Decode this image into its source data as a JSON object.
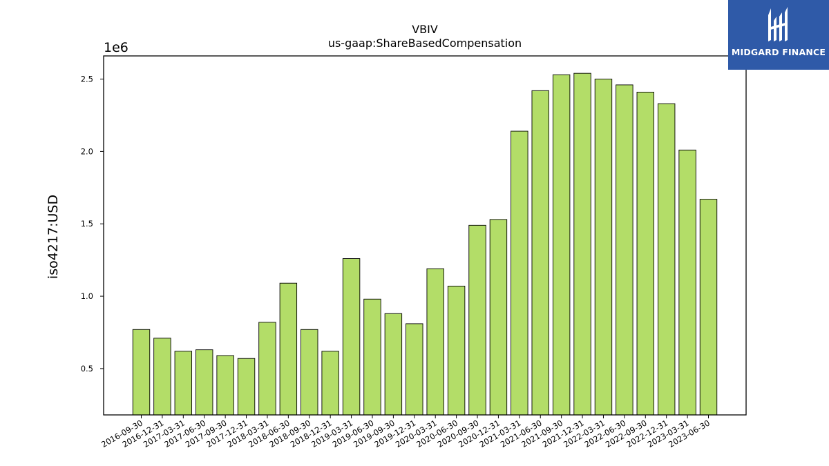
{
  "logo": {
    "text": "MIDGARD FINANCE",
    "icon": "midgard-logo-icon",
    "background": "#2f5aa8"
  },
  "chart_data": {
    "type": "bar",
    "title": "VBIV",
    "subtitle": "us-gaap:ShareBasedCompensation",
    "xlabel": "",
    "ylabel": "iso4217:USD",
    "offset_label": "1e6",
    "ylim": [
      0.18,
      2.66
    ],
    "yticks": [
      0.5,
      1.0,
      1.5,
      2.0,
      2.5
    ],
    "ytick_labels": [
      "0.5",
      "1.0",
      "1.5",
      "2.0",
      "2.5"
    ],
    "grid": false,
    "bar_color": "#b3dd68",
    "edge_color": "#000000",
    "categories": [
      "2016-09-30",
      "2016-12-31",
      "2017-03-31",
      "2017-06-30",
      "2017-09-30",
      "2017-12-31",
      "2018-03-31",
      "2018-06-30",
      "2018-09-30",
      "2018-12-31",
      "2019-03-31",
      "2019-06-30",
      "2019-09-30",
      "2019-12-31",
      "2020-03-31",
      "2020-06-30",
      "2020-09-30",
      "2020-12-31",
      "2021-03-31",
      "2021-06-30",
      "2021-09-30",
      "2021-12-31",
      "2022-03-31",
      "2022-06-30",
      "2022-09-30",
      "2022-12-31",
      "2023-03-31",
      "2023-06-30"
    ],
    "values": [
      0.77,
      0.71,
      0.62,
      0.63,
      0.59,
      0.57,
      0.82,
      1.09,
      0.77,
      0.62,
      1.26,
      0.98,
      0.88,
      0.81,
      1.19,
      1.07,
      1.49,
      1.53,
      2.14,
      2.42,
      2.53,
      2.54,
      2.5,
      2.46,
      2.41,
      2.33,
      2.01,
      1.67
    ]
  }
}
